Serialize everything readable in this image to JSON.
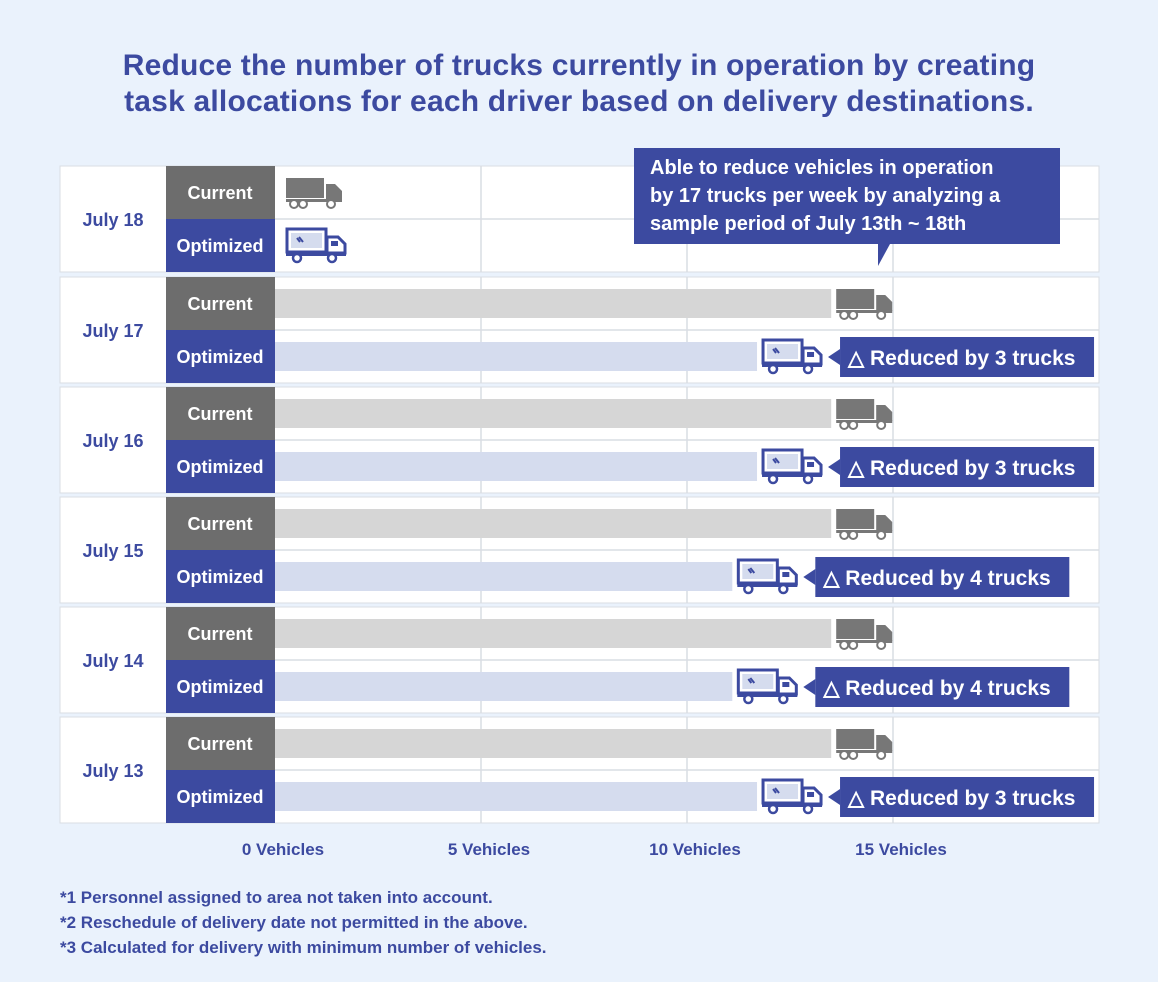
{
  "title": {
    "line1": "Reduce the number of trucks currently in operation by creating",
    "line2": "task allocations for each driver based on delivery destinations."
  },
  "callout": {
    "line1": "Able to reduce vehicles in operation",
    "line2": "by 17 trucks per week by analyzing a",
    "line3": "sample period of July 13th ~ 18th"
  },
  "footnotes": [
    "*1 Personnel assigned to area not taken into account.",
    "*2 Reschedule of delivery date not permitted in the above.",
    "*3 Calculated for delivery with minimum number of vehicles."
  ],
  "colors": {
    "accent": "#3c4aa0",
    "current_label": "#6d6d6d",
    "current_bar": "#d6d6d6",
    "optimized_bar": "#d5dcee",
    "truck_gray": "#777777",
    "grid": "#d9dde3"
  },
  "chart_data": {
    "type": "bar",
    "orientation": "horizontal",
    "title": "Reduce the number of trucks currently in operation by creating task allocations for each driver based on delivery destinations.",
    "xlabel": "",
    "ylabel": "",
    "xlim": [
      0,
      20
    ],
    "ticks": [
      {
        "value": 0,
        "label": "0 Vehicles"
      },
      {
        "value": 5,
        "label": "5 Vehicles"
      },
      {
        "value": 10,
        "label": "10 Vehicles"
      },
      {
        "value": 15,
        "label": "15 Vehicles"
      }
    ],
    "series_labels": {
      "current": "Current",
      "optimized": "Optimized"
    },
    "categories": [
      "July 18",
      "July 17",
      "July 16",
      "July 15",
      "July 14",
      "July 13"
    ],
    "series": [
      {
        "name": "Current",
        "values": [
          0,
          13.5,
          13.5,
          13.5,
          13.5,
          13.5
        ]
      },
      {
        "name": "Optimized",
        "values": [
          0,
          11.7,
          11.7,
          11.1,
          11.1,
          11.7
        ]
      }
    ],
    "reduction_labels": [
      "",
      "△ Reduced by 3 trucks",
      "△ Reduced by 3 trucks",
      "△ Reduced by 4 trucks",
      "△ Reduced by 4 trucks",
      "△ Reduced by 3 trucks"
    ],
    "icons": {
      "current": "gray-truck-icon",
      "optimized": "blue-truck-icon"
    }
  }
}
